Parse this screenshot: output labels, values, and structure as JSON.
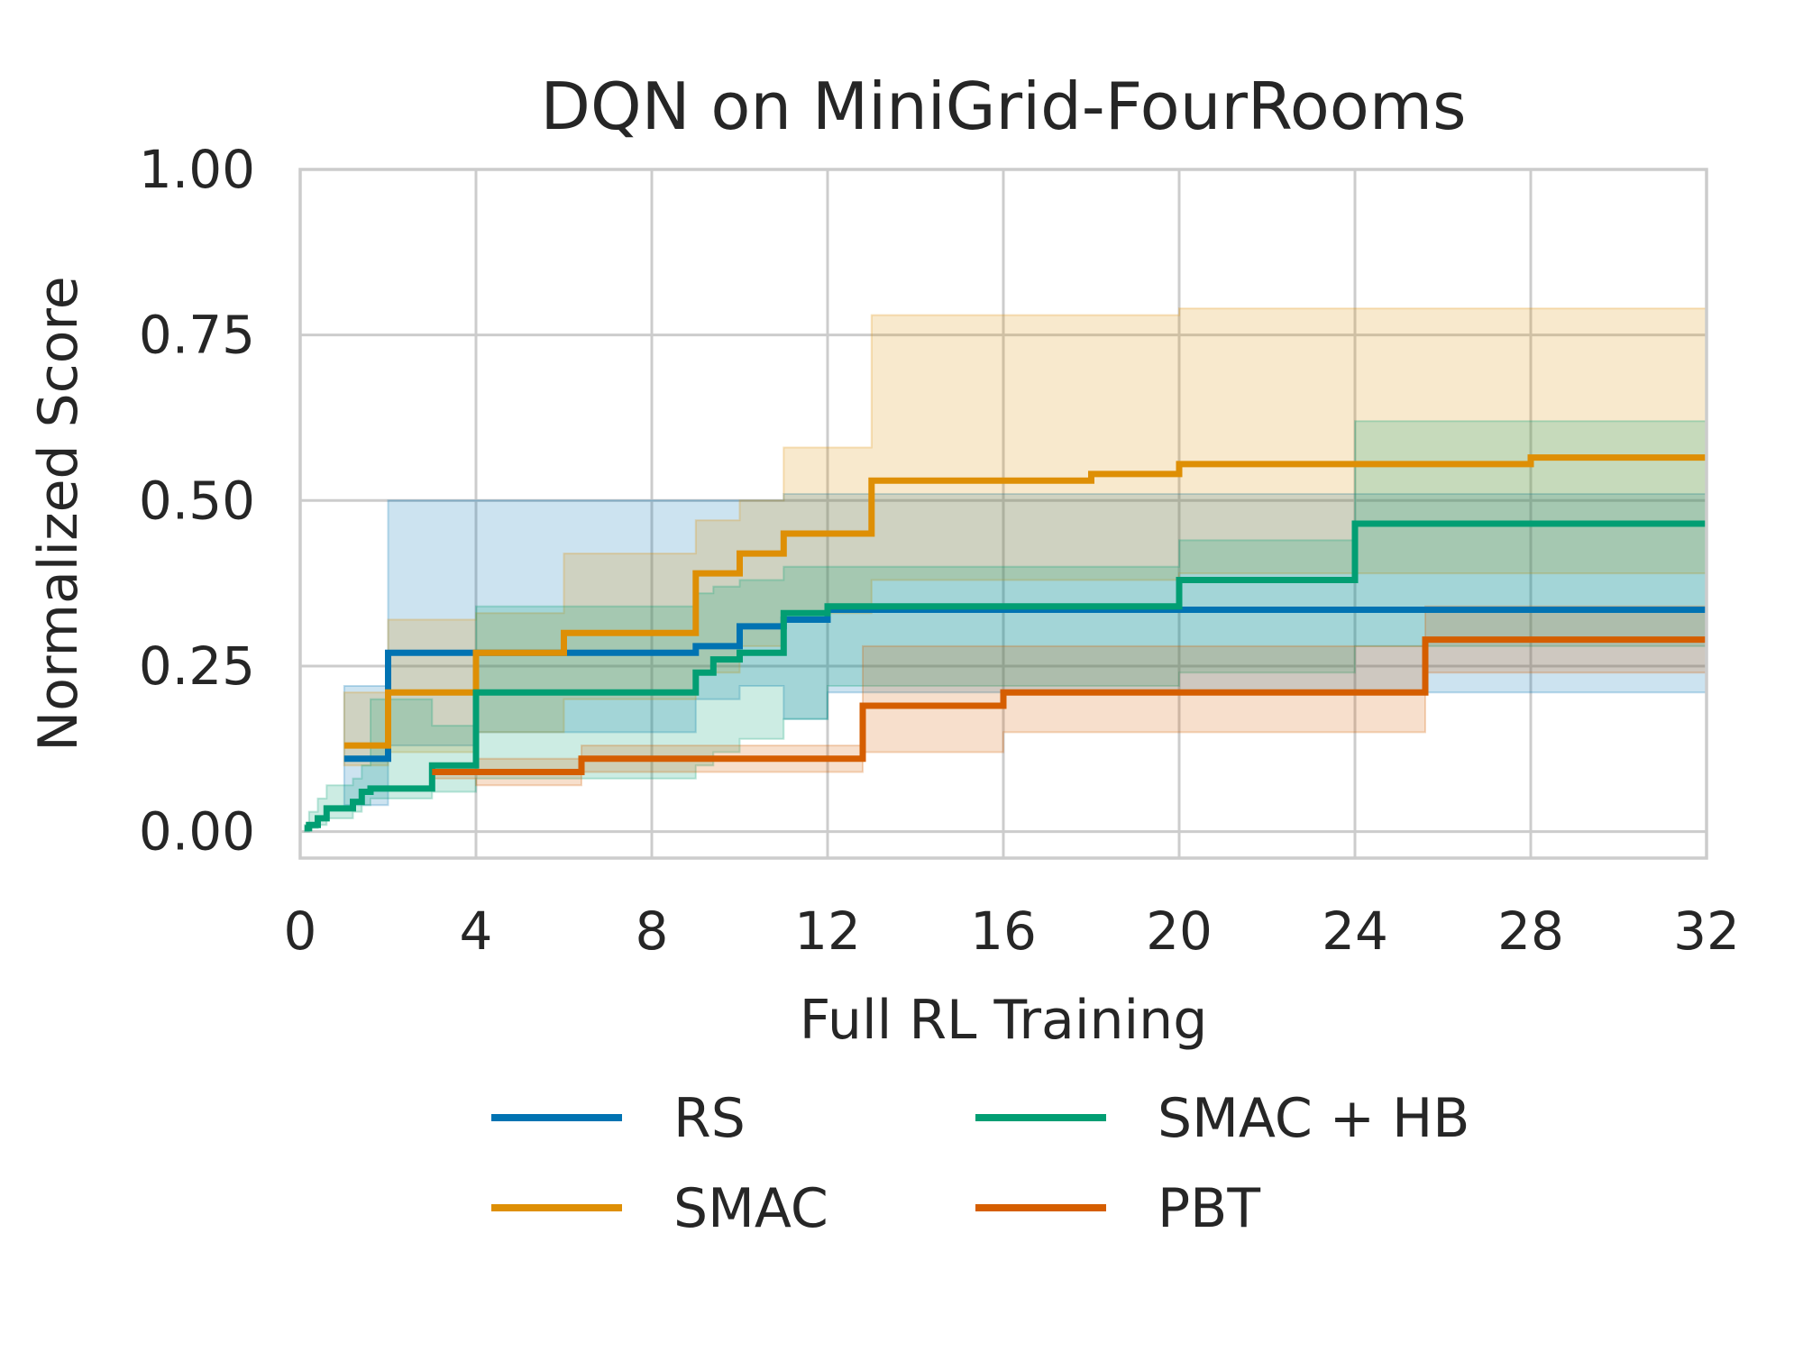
{
  "chart_data": {
    "type": "line",
    "step": true,
    "title": "DQN on MiniGrid-FourRooms",
    "xlabel": "Full RL Training",
    "ylabel": "Normalized Score",
    "xlim": [
      0,
      32
    ],
    "ylim": [
      -0.04,
      1.0
    ],
    "xticks": [
      0,
      4,
      8,
      12,
      16,
      20,
      24,
      28,
      32
    ],
    "xtick_labels": [
      "0",
      "4",
      "8",
      "12",
      "16",
      "20",
      "24",
      "28",
      "32"
    ],
    "yticks": [
      0.0,
      0.25,
      0.5,
      0.75,
      1.0
    ],
    "ytick_labels": [
      "0.00",
      "0.25",
      "0.50",
      "0.75",
      "1.00"
    ],
    "grid": true,
    "legend": {
      "placement": "below",
      "columns": 2
    },
    "series": [
      {
        "name": "RS",
        "color": "#0173b2",
        "x": [
          1,
          2,
          4,
          9,
          10,
          11,
          12,
          32
        ],
        "y": [
          0.11,
          0.27,
          0.27,
          0.28,
          0.31,
          0.32,
          0.335,
          0.335
        ],
        "lower": [
          0.04,
          0.13,
          0.15,
          0.2,
          0.22,
          0.17,
          0.21,
          0.21
        ],
        "upper": [
          0.22,
          0.5,
          0.5,
          0.5,
          0.5,
          0.51,
          0.51,
          0.52
        ]
      },
      {
        "name": "SMAC",
        "color": "#de8f05",
        "x": [
          1,
          2,
          4,
          6,
          9,
          10,
          11,
          13,
          18,
          20,
          28,
          32
        ],
        "y": [
          0.13,
          0.21,
          0.27,
          0.3,
          0.39,
          0.42,
          0.45,
          0.53,
          0.54,
          0.555,
          0.565,
          0.565
        ],
        "lower": [
          0.1,
          0.12,
          0.15,
          0.2,
          0.24,
          0.28,
          0.33,
          0.38,
          0.38,
          0.39,
          0.39,
          0.39
        ],
        "upper": [
          0.21,
          0.32,
          0.33,
          0.42,
          0.47,
          0.5,
          0.58,
          0.78,
          0.78,
          0.79,
          0.79,
          0.8
        ]
      },
      {
        "name": "SMAC + HB",
        "color": "#029e73",
        "x": [
          0.1,
          0.2,
          0.4,
          0.6,
          1.2,
          1.4,
          1.6,
          3,
          4,
          9,
          9.4,
          10,
          11,
          12,
          20,
          24,
          32
        ],
        "y": [
          0.005,
          0.01,
          0.02,
          0.035,
          0.045,
          0.06,
          0.065,
          0.1,
          0.21,
          0.24,
          0.26,
          0.27,
          0.33,
          0.34,
          0.38,
          0.465,
          0.465
        ],
        "lower": [
          0.0,
          0.005,
          0.01,
          0.02,
          0.03,
          0.04,
          0.05,
          0.06,
          0.08,
          0.1,
          0.12,
          0.14,
          0.17,
          0.22,
          0.24,
          0.28,
          0.28
        ],
        "upper": [
          0.01,
          0.03,
          0.05,
          0.07,
          0.08,
          0.1,
          0.2,
          0.16,
          0.34,
          0.36,
          0.37,
          0.38,
          0.4,
          0.4,
          0.44,
          0.62,
          0.62
        ]
      },
      {
        "name": "PBT",
        "color": "#d55e00",
        "x": [
          3,
          4,
          6.4,
          12.8,
          16,
          25.6,
          32
        ],
        "y": [
          0.09,
          0.09,
          0.11,
          0.19,
          0.21,
          0.29,
          0.29
        ],
        "lower": [
          0.08,
          0.07,
          0.09,
          0.12,
          0.15,
          0.24,
          0.24
        ],
        "upper": [
          0.1,
          0.11,
          0.13,
          0.28,
          0.28,
          0.34,
          0.34
        ]
      }
    ]
  }
}
